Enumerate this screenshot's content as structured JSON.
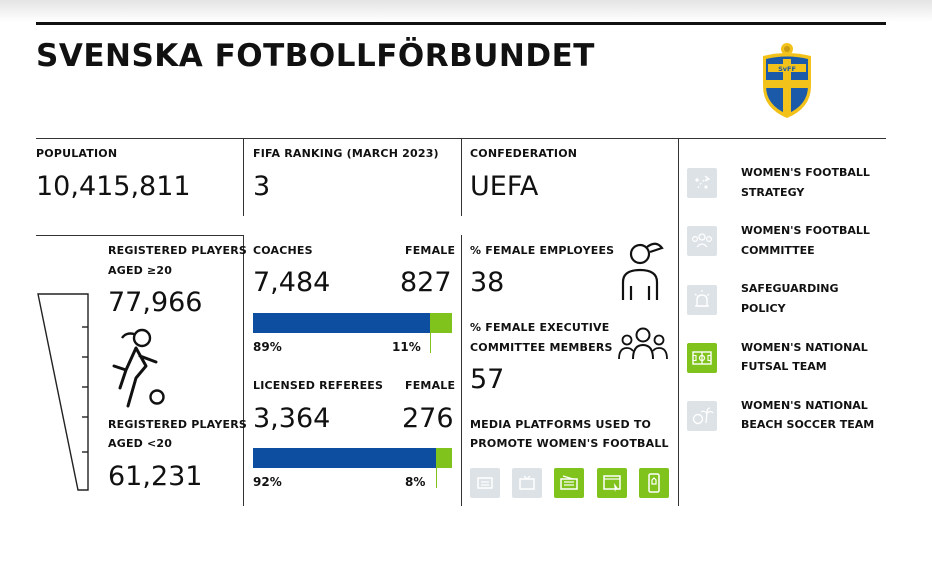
{
  "title": "SVENSKA FOTBOLLFÖRBUNDET",
  "colors": {
    "blue": "#0d4ea0",
    "green": "#7fc31c",
    "grey": "#dde2e6",
    "crest_blue": "#1a5aa8",
    "crest_yellow": "#f3c21a"
  },
  "crest": {
    "text": "SvFF"
  },
  "population": {
    "label": "POPULATION",
    "value": "10,415,811"
  },
  "fifa_ranking": {
    "label": "FIFA RANKING (MARCH 2023)",
    "value": "3"
  },
  "confederation": {
    "label": "CONFEDERATION",
    "value": "UEFA"
  },
  "players": {
    "senior_label_1": "REGISTERED PLAYERS",
    "senior_label_2": "AGED ≥20",
    "senior_value": "77,966",
    "youth_label_1": "REGISTERED PLAYERS",
    "youth_label_2": "AGED <20",
    "youth_value": "61,231",
    "icon": "female-player-with-ball-icon"
  },
  "coaches": {
    "label": "COACHES",
    "female_label": "FEMALE",
    "total": "7,484",
    "female": "827",
    "male_pct": "89%",
    "female_pct": "11%",
    "female_share": 0.11
  },
  "referees": {
    "label": "LICENSED REFEREES",
    "female_label": "FEMALE",
    "total": "3,364",
    "female": "276",
    "male_pct": "92%",
    "female_pct": "8%",
    "female_share": 0.08
  },
  "employees": {
    "label": "% FEMALE EMPLOYEES",
    "value": "38",
    "icon": "female-person-icon"
  },
  "executive": {
    "label_1": "% FEMALE EXECUTIVE",
    "label_2": "COMMITTEE MEMBERS",
    "value": "57",
    "icon": "committee-group-icon"
  },
  "media": {
    "label_1": "MEDIA PLATFORMS USED TO",
    "label_2": "PROMOTE WOMEN'S FOOTBALL",
    "platforms": [
      {
        "icon": "newspaper-icon",
        "active": false
      },
      {
        "icon": "tv-icon",
        "active": false
      },
      {
        "icon": "radio-icon",
        "active": true
      },
      {
        "icon": "website-icon",
        "active": true
      },
      {
        "icon": "social-media-icon",
        "active": true
      }
    ]
  },
  "policies": [
    {
      "label_1": "WOMEN'S FOOTBALL",
      "label_2": "STRATEGY",
      "icon": "strategy-icon",
      "active": false
    },
    {
      "label_1": "WOMEN'S FOOTBALL",
      "label_2": "COMMITTEE",
      "icon": "committee-icon",
      "active": false
    },
    {
      "label_1": "SAFEGUARDING",
      "label_2": "POLICY",
      "icon": "alarm-icon",
      "active": false
    },
    {
      "label_1": "WOMEN'S NATIONAL",
      "label_2": "FUTSAL TEAM",
      "icon": "futsal-pitch-icon",
      "active": true
    },
    {
      "label_1": "WOMEN'S NATIONAL",
      "label_2": "BEACH SOCCER TEAM",
      "icon": "beach-soccer-icon",
      "active": false
    }
  ]
}
